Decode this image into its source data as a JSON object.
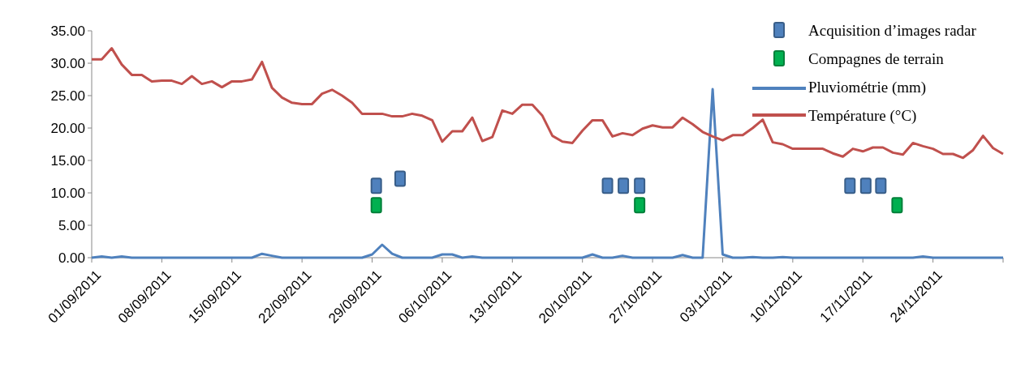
{
  "chart_data": {
    "type": "line",
    "ylim": [
      0,
      35
    ],
    "yticks": [
      {
        "value": 0,
        "label": "0.00"
      },
      {
        "value": 5,
        "label": "5.00"
      },
      {
        "value": 10,
        "label": "10.00"
      },
      {
        "value": 15,
        "label": "15.00"
      },
      {
        "value": 20,
        "label": "20.00"
      },
      {
        "value": 25,
        "label": "25.00"
      },
      {
        "value": 30,
        "label": "30.00"
      },
      {
        "value": 35,
        "label": "35.00"
      }
    ],
    "xlim": [
      "2011-09-01",
      "2011-12-01"
    ],
    "xticks": [
      {
        "value": "2011-09-01",
        "label": "01/09/2011"
      },
      {
        "value": "2011-09-08",
        "label": "08/09/2011"
      },
      {
        "value": "2011-09-15",
        "label": "15/09/2011"
      },
      {
        "value": "2011-09-22",
        "label": "22/09/2011"
      },
      {
        "value": "2011-09-29",
        "label": "29/09/2011"
      },
      {
        "value": "2011-10-06",
        "label": "06/10/2011"
      },
      {
        "value": "2011-10-13",
        "label": "13/10/2011"
      },
      {
        "value": "2011-10-20",
        "label": "20/10/2011"
      },
      {
        "value": "2011-10-27",
        "label": "27/10/2011"
      },
      {
        "value": "2011-11-03",
        "label": "03/11/2011"
      },
      {
        "value": "2011-11-10",
        "label": "10/11/2011"
      },
      {
        "value": "2011-11-17",
        "label": "17/11/2011"
      },
      {
        "value": "2011-11-24",
        "label": "24/11/2011"
      },
      {
        "value": "2011-12-01",
        "label": null
      }
    ],
    "x": [
      "2011-09-01",
      "2011-09-02",
      "2011-09-03",
      "2011-09-04",
      "2011-09-05",
      "2011-09-06",
      "2011-09-07",
      "2011-09-08",
      "2011-09-09",
      "2011-09-10",
      "2011-09-11",
      "2011-09-12",
      "2011-09-13",
      "2011-09-14",
      "2011-09-15",
      "2011-09-16",
      "2011-09-17",
      "2011-09-18",
      "2011-09-19",
      "2011-09-20",
      "2011-09-21",
      "2011-09-22",
      "2011-09-23",
      "2011-09-24",
      "2011-09-25",
      "2011-09-26",
      "2011-09-27",
      "2011-09-28",
      "2011-09-29",
      "2011-09-30",
      "2011-10-01",
      "2011-10-02",
      "2011-10-03",
      "2011-10-04",
      "2011-10-05",
      "2011-10-06",
      "2011-10-07",
      "2011-10-08",
      "2011-10-09",
      "2011-10-10",
      "2011-10-11",
      "2011-10-12",
      "2011-10-13",
      "2011-10-14",
      "2011-10-15",
      "2011-10-16",
      "2011-10-17",
      "2011-10-18",
      "2011-10-19",
      "2011-10-20",
      "2011-10-21",
      "2011-10-22",
      "2011-10-23",
      "2011-10-24",
      "2011-10-25",
      "2011-10-26",
      "2011-10-27",
      "2011-10-28",
      "2011-10-29",
      "2011-10-30",
      "2011-10-31",
      "2011-11-01",
      "2011-11-02",
      "2011-11-03",
      "2011-11-04",
      "2011-11-05",
      "2011-11-06",
      "2011-11-07",
      "2011-11-08",
      "2011-11-09",
      "2011-11-10",
      "2011-11-11",
      "2011-11-12",
      "2011-11-13",
      "2011-11-14",
      "2011-11-15",
      "2011-11-16",
      "2011-11-17",
      "2011-11-18",
      "2011-11-19",
      "2011-11-20",
      "2011-11-21",
      "2011-11-22",
      "2011-11-23",
      "2011-11-24",
      "2011-11-25",
      "2011-11-26",
      "2011-11-27",
      "2011-11-28",
      "2011-11-29",
      "2011-11-30",
      "2011-12-01"
    ],
    "grid": false,
    "legend": "top right",
    "line_style": "solid",
    "marker": "none",
    "series": [
      {
        "name": "Acquisition d’images radar",
        "type": "scatter",
        "marker": "square",
        "color": "#4f81bd",
        "x": [
          "2011-09-29T10:00",
          "2011-10-01T19:00",
          "2011-10-22T12:00",
          "2011-10-24T02:00",
          "2011-10-25T17:00",
          "2011-11-15T17:00",
          "2011-11-17T07:00",
          "2011-11-18T19:00"
        ],
        "values": [
          11.1,
          12.2,
          11.1,
          11.1,
          11.1,
          11.1,
          11.1,
          11.1
        ]
      },
      {
        "name": "Compagnes de terrain",
        "type": "scatter",
        "marker": "square",
        "color": "#00b050",
        "x": [
          "2011-09-29T10:00",
          "2011-10-25T17:00",
          "2011-11-20T10:00"
        ],
        "values": [
          8.1,
          8.1,
          8.1
        ]
      },
      {
        "name": "Pluviométrie (mm)",
        "color": "#4f81bd",
        "values": [
          0,
          0.2,
          0,
          0.2,
          0,
          0,
          0,
          0,
          0,
          0,
          0,
          0,
          0,
          0,
          0,
          0,
          0,
          0.6,
          0.3,
          0,
          0,
          0,
          0,
          0,
          0,
          0,
          0,
          0,
          0.5,
          2.0,
          0.6,
          0,
          0,
          0,
          0,
          0.5,
          0.5,
          0,
          0.2,
          0,
          0,
          0,
          0,
          0,
          0,
          0,
          0,
          0,
          0,
          0,
          0.5,
          0,
          0,
          0.3,
          0,
          0,
          0,
          0,
          0,
          0.4,
          0,
          0,
          26.0,
          0.5,
          0,
          0,
          0.1,
          0,
          0,
          0.1,
          0,
          0,
          0,
          0,
          0,
          0,
          0,
          0,
          0,
          0,
          0,
          0,
          0,
          0.2,
          0,
          0,
          0,
          0,
          0,
          0,
          0,
          0
        ]
      },
      {
        "name": "Température (°C)",
        "color": "#c0504d",
        "values": [
          30.6,
          30.6,
          32.3,
          29.8,
          28.2,
          28.2,
          27.2,
          27.3,
          27.3,
          26.8,
          28.0,
          26.8,
          27.2,
          26.3,
          27.2,
          27.2,
          27.5,
          30.2,
          26.2,
          24.7,
          23.9,
          23.7,
          23.7,
          25.3,
          25.9,
          25.0,
          23.9,
          22.2,
          22.2,
          22.2,
          21.8,
          21.8,
          22.2,
          21.9,
          21.2,
          17.9,
          19.5,
          19.5,
          21.6,
          18.0,
          18.6,
          22.7,
          22.2,
          23.6,
          23.6,
          21.9,
          18.8,
          17.9,
          17.7,
          19.6,
          21.2,
          21.2,
          18.7,
          19.2,
          18.9,
          19.9,
          20.4,
          20.1,
          20.1,
          21.6,
          20.6,
          19.4,
          18.7,
          18.1,
          18.9,
          18.9,
          20.0,
          21.3,
          17.8,
          17.5,
          16.8,
          16.8,
          16.8,
          16.8,
          16.1,
          15.6,
          16.8,
          16.4,
          17.0,
          17.0,
          16.2,
          15.9,
          17.7,
          17.2,
          16.8,
          16.0,
          16.0,
          15.4,
          16.6,
          18.8,
          16.9,
          16.0
        ]
      }
    ]
  }
}
